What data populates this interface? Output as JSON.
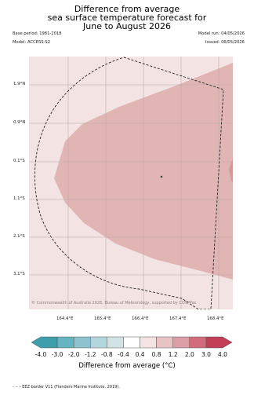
{
  "title": {
    "line1": "Difference from average",
    "line2": "sea surface temperature forecast for",
    "line3": "June to August 2026"
  },
  "meta": {
    "base_period": "Base period: 1981-2018",
    "model": "Model: ACCESS-S2",
    "model_run": "Model run: 04/05/2026",
    "issued": "Issued: 06/05/2026"
  },
  "map": {
    "lat_labels": [
      "1.9°N",
      "0.9°N",
      "0.1°S",
      "1.1°S",
      "2.1°S",
      "3.1°S"
    ],
    "lon_labels": [
      "164.4°E",
      "165.4°E",
      "166.4°E",
      "167.4°E",
      "168.4°E"
    ],
    "credit": "© Commonwealth of Australia 2026, Bureau of Meteorology, supported by COSPPac",
    "background_anomaly_class": "0.4 to 0.8",
    "plume_anomaly_class": "0.8 to 1.2",
    "colors": {
      "background": "#f3e3e3",
      "plume": "#e2b5b5",
      "plume_edge": "#d49a9a",
      "eez_line": "#222222"
    }
  },
  "colorbar": {
    "ticks": [
      "-4.0",
      "-3.0",
      "-2.0",
      "-1.2",
      "-0.8",
      "-0.4",
      "0.4",
      "0.8",
      "1.2",
      "2.0",
      "3.0",
      "4.0"
    ],
    "colors": [
      "#3f9eab",
      "#66b3c1",
      "#8cc3ce",
      "#b3d5dc",
      "#d2e3e6",
      "#ffffff",
      "#f3e3e3",
      "#e8c4c4",
      "#dc9ea6",
      "#d26c7c",
      "#c23e57"
    ],
    "title": "Difference from average (°C)"
  },
  "legend": {
    "eez": "– – – EEZ border V11 (Flanders Marine Institute, 2019)."
  }
}
